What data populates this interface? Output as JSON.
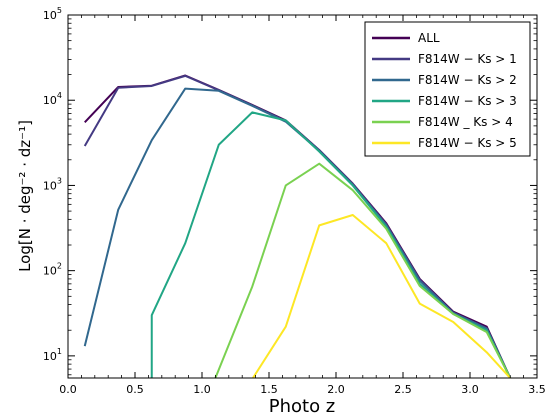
{
  "chart_data": {
    "type": "line",
    "xlabel": "Photo z",
    "ylabel": "Log[N · deg⁻² · dz⁻¹]",
    "xlim": [
      0.0,
      3.5
    ],
    "ylim": [
      5.5,
      100000
    ],
    "y_scale": "log",
    "grid": false,
    "legend_position": "top-right",
    "x_tick_labels": [
      "0.0",
      "0.5",
      "1.0",
      "1.5",
      "2.0",
      "2.5",
      "3.0",
      "3.5"
    ],
    "y_tick_labels": [
      {
        "base": "10",
        "exp": "1"
      },
      {
        "base": "10",
        "exp": "2"
      },
      {
        "base": "10",
        "exp": "3"
      },
      {
        "base": "10",
        "exp": "4"
      },
      {
        "base": "10",
        "exp": "5"
      }
    ],
    "series": [
      {
        "name": "ALL",
        "color": "#440154",
        "x": [
          0.125,
          0.375,
          0.625,
          0.875,
          1.125,
          1.375,
          1.625,
          1.875,
          2.125,
          2.375,
          2.625,
          2.875,
          3.125,
          3.3
        ],
        "y": [
          5500,
          14300,
          14800,
          19500,
          13200,
          8800,
          5800,
          2600,
          1050,
          360,
          80,
          33,
          22,
          5.5
        ]
      },
      {
        "name": "F814W − Ks > 1",
        "color": "#443a83",
        "x": [
          0.125,
          0.375,
          0.625,
          0.875,
          1.125,
          1.375,
          1.625,
          1.875,
          2.125,
          2.375,
          2.625,
          2.875,
          3.125,
          3.3
        ],
        "y": [
          2900,
          14000,
          14700,
          19300,
          13100,
          8700,
          5700,
          2600,
          1040,
          350,
          78,
          32,
          21,
          5.5
        ]
      },
      {
        "name": "F814W − Ks > 2",
        "color": "#31688e",
        "x": [
          0.125,
          0.375,
          0.625,
          0.875,
          1.125,
          1.375,
          1.625,
          1.875,
          2.125,
          2.375,
          2.625,
          2.875,
          3.125,
          3.3
        ],
        "y": [
          13,
          520,
          3400,
          13700,
          12900,
          8600,
          5600,
          2550,
          1020,
          340,
          76,
          32,
          21,
          5.5
        ]
      },
      {
        "name": "F814W − Ks > 3",
        "color": "#21a685",
        "x": [
          0.625,
          0.625,
          0.875,
          1.125,
          1.375,
          1.625,
          1.875,
          2.125,
          2.375,
          2.625,
          2.875,
          3.125,
          3.3
        ],
        "y": [
          5.5,
          30,
          210,
          3000,
          7200,
          5800,
          2500,
          1000,
          330,
          70,
          31,
          20,
          5.5
        ]
      },
      {
        "name": "F814W _ Ks > 4",
        "color": "#7ad151",
        "x": [
          1.1,
          1.375,
          1.625,
          1.875,
          2.125,
          2.375,
          2.625,
          2.875,
          3.125,
          3.3
        ],
        "y": [
          5.5,
          65,
          1000,
          1800,
          880,
          310,
          66,
          31,
          19,
          5.5
        ]
      },
      {
        "name": "F814W − Ks > 5",
        "color": "#fde725",
        "x": [
          1.38,
          1.625,
          1.875,
          2.125,
          2.375,
          2.625,
          2.875,
          3.125,
          3.3
        ],
        "y": [
          5.5,
          22,
          340,
          450,
          210,
          41,
          25,
          11,
          5.5
        ]
      }
    ]
  }
}
